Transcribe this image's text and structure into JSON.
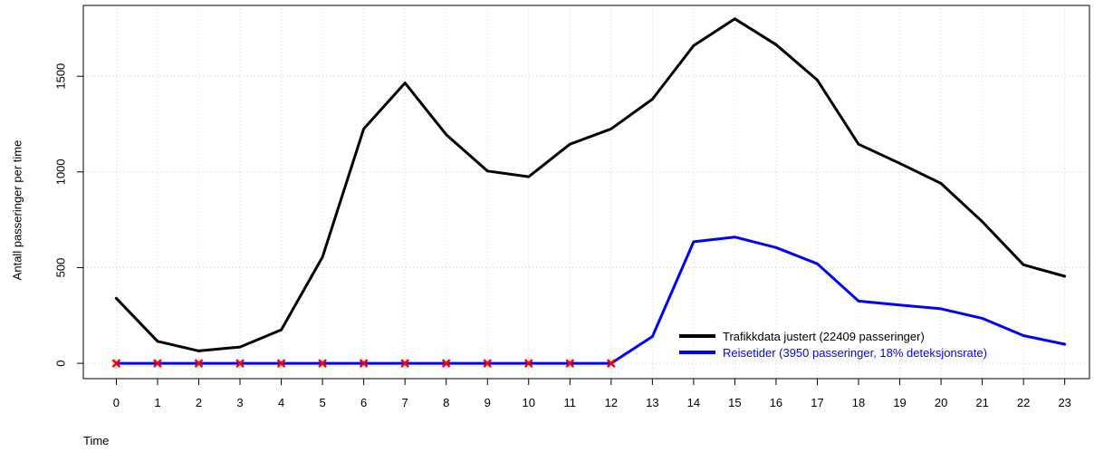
{
  "chart_data": {
    "type": "line",
    "title": "",
    "xlabel": "Time",
    "ylabel": "Antall passeringer per time",
    "x": [
      0,
      1,
      2,
      3,
      4,
      5,
      6,
      7,
      8,
      9,
      10,
      11,
      12,
      13,
      14,
      15,
      16,
      17,
      18,
      19,
      20,
      21,
      22,
      23
    ],
    "xlim": [
      -0.8,
      23.6
    ],
    "ylim": [
      -80,
      1870
    ],
    "yticks": [
      0,
      500,
      1000,
      1500
    ],
    "grid": true,
    "legend_position": "bottom-right",
    "series": [
      {
        "name": "Trafikkdata justert (22409 passeringer)",
        "color": "#000000",
        "values": [
          340,
          115,
          65,
          85,
          175,
          555,
          1225,
          1465,
          1195,
          1005,
          975,
          1145,
          1225,
          1380,
          1660,
          1800,
          1665,
          1480,
          1145,
          1045,
          940,
          740,
          515,
          455
        ]
      },
      {
        "name": "Reisetider (3950 passeringer, 18% deteksjonsrate)",
        "color": "#0000ff",
        "values": [
          0,
          0,
          0,
          0,
          0,
          0,
          0,
          0,
          0,
          0,
          0,
          0,
          0,
          140,
          635,
          660,
          605,
          520,
          325,
          305,
          285,
          235,
          145,
          100
        ]
      }
    ],
    "markers": {
      "series": "Reisetider (3950 passeringer, 18% deteksjonsrate)",
      "x": [
        0,
        1,
        2,
        3,
        4,
        5,
        6,
        7,
        8,
        9,
        10,
        11,
        12
      ],
      "y": [
        0,
        0,
        0,
        0,
        0,
        0,
        0,
        0,
        0,
        0,
        0,
        0,
        0
      ],
      "symbol": "x",
      "color": "#ff0000"
    }
  }
}
